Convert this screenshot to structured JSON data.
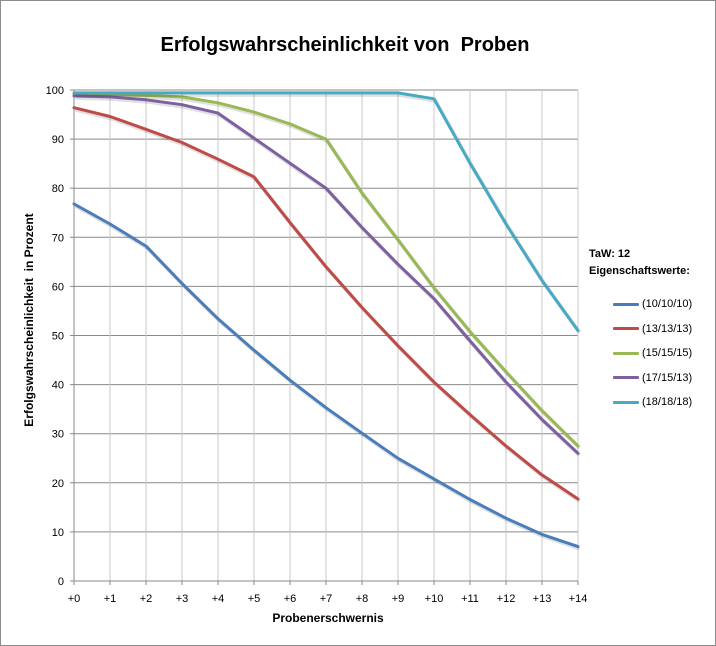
{
  "chart_data": {
    "type": "line",
    "title": "Erfolgswahrscheinlichkeit von  Proben",
    "xlabel": "Probenerschwernis",
    "ylabel": "Erfolgswahrscheinlichkeit  in Prozent",
    "categories": [
      "+0",
      "+1",
      "+2",
      "+3",
      "+4",
      "+5",
      "+6",
      "+7",
      "+8",
      "+9",
      "+10",
      "+11",
      "+12",
      "+13",
      "+14"
    ],
    "ylim": [
      0,
      100
    ],
    "yticks": [
      0,
      10,
      20,
      30,
      40,
      50,
      60,
      70,
      80,
      90,
      100
    ],
    "grid": true,
    "legend_position": "right",
    "legend_header": [
      "TaW: 12",
      "Eigenschaftswerte:"
    ],
    "series": [
      {
        "name": "(10/10/10)",
        "color": "#4a7ebb",
        "values": [
          76.8,
          72.7,
          68.2,
          60.6,
          53.4,
          47.0,
          40.9,
          35.3,
          30.1,
          25.0,
          20.8,
          16.6,
          12.8,
          9.5,
          7.0
        ]
      },
      {
        "name": "(13/13/13)",
        "color": "#be4b48",
        "values": [
          96.4,
          94.6,
          92.0,
          89.3,
          85.9,
          82.3,
          73.0,
          64.0,
          55.7,
          47.9,
          40.5,
          33.9,
          27.5,
          21.6,
          16.7
        ]
      },
      {
        "name": "(15/15/15)",
        "color": "#98b954",
        "values": [
          99.2,
          99.1,
          98.9,
          98.6,
          97.4,
          95.5,
          93.1,
          90.0,
          79.0,
          69.5,
          59.7,
          50.8,
          42.6,
          34.7,
          27.5
        ]
      },
      {
        "name": "(17/15/13)",
        "color": "#7d60a0",
        "values": [
          98.8,
          98.6,
          98.0,
          97.0,
          95.3,
          90.2,
          85.1,
          80.0,
          72.0,
          64.5,
          57.5,
          48.9,
          40.5,
          32.9,
          26.0
        ]
      },
      {
        "name": "(18/18/18)",
        "color": "#46aac5",
        "values": [
          99.4,
          99.4,
          99.4,
          99.4,
          99.4,
          99.4,
          99.4,
          99.4,
          99.4,
          99.4,
          98.2,
          85.1,
          72.7,
          61.2,
          51.0
        ]
      }
    ]
  }
}
